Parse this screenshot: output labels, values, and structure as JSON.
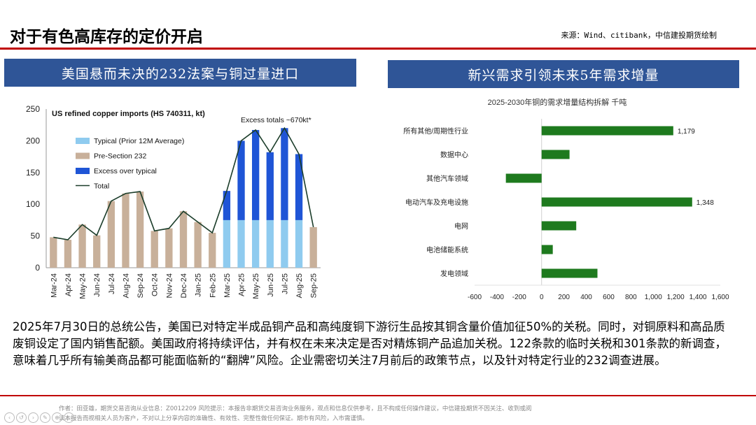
{
  "page": {
    "title": "对于有色高库存的定价开启",
    "source": "来源：Wind、citibank，中信建投期货绘制"
  },
  "left_panel": {
    "header": "美国悬而未决的232法案与铜过量进口"
  },
  "right_panel": {
    "header": "新兴需求引领未来5年需求增量"
  },
  "paragraph": "2025年7月30日的总统公告，美国已对特定半成品铜产品和高纯度铜下游衍生品按其铜含量价值加征50%的关税。同时，对铜原料和高品质废铜设定了国内销售配额。美国政府将持续评估，并有权在未来决定是否对精炼铜产品追加关税。122条款的临时关税和301条款的新调查，意味着几乎所有输美商品都可能面临新的“翻牌”风险。企业需密切关注7月前后的政策节点，以及针对特定行业的232调查进展。",
  "footer": {
    "line1": "作者：田亚雄，期货交易咨询从业信息：Z0012209    风险提示：本报告非期货交易咨询业务服务，观点和信息仅供参考，且不构成任何操作建议，中信建投期货不因关注、收到或阅",
    "line2": "读本报告而视相关人员为客户，不对以上分享内容的准确性、有效性、完整性做任何保证。期市有风险，入市需谨慎。"
  },
  "nav_icons": [
    "prev-icon",
    "back-icon",
    "next-icon",
    "edit-icon",
    "zoom-icon",
    "more-icon"
  ],
  "chart_data": [
    {
      "type": "bar",
      "title": "US refined copper imports (HS 740311, kt)",
      "annotation": "Excess totals ~670kt*",
      "categories": [
        "Mar-24",
        "Apr-24",
        "May-24",
        "Jun-24",
        "Jul-24",
        "Aug-24",
        "Sep-24",
        "Oct-24",
        "Nov-24",
        "Dec-24",
        "Jan-25",
        "Feb-25",
        "Mar-25",
        "Apr-25",
        "May-25",
        "Jun-25",
        "Jul-25",
        "Aug-25",
        "Sep-25"
      ],
      "ylim": [
        0,
        250
      ],
      "yticks": [
        0,
        50,
        100,
        150,
        200,
        250
      ],
      "legend_position": "left",
      "stacked": true,
      "series": [
        {
          "name": "Typical (Prior 12M Average)",
          "color": "#8fcbef",
          "values": [
            null,
            null,
            null,
            null,
            null,
            null,
            null,
            null,
            null,
            null,
            null,
            null,
            75,
            75,
            75,
            75,
            75,
            75,
            null
          ]
        },
        {
          "name": "Pre-Section 232",
          "color": "#c8b09a",
          "values": [
            48,
            44,
            68,
            51,
            105,
            117,
            120,
            58,
            62,
            89,
            72,
            55,
            null,
            null,
            null,
            null,
            null,
            null,
            64
          ]
        },
        {
          "name": "Excess over typical",
          "color": "#1f55d6",
          "values": [
            null,
            null,
            null,
            null,
            null,
            null,
            null,
            null,
            null,
            null,
            null,
            null,
            46,
            125,
            142,
            107,
            145,
            104,
            null
          ]
        },
        {
          "name": "Total",
          "color": "#1b3d2a",
          "line": true,
          "values": [
            48,
            44,
            68,
            51,
            105,
            117,
            120,
            58,
            62,
            89,
            72,
            55,
            121,
            200,
            217,
            182,
            220,
            179,
            64
          ]
        }
      ]
    },
    {
      "type": "bar",
      "orientation": "horizontal",
      "title": "2025-2030年铜的需求增量结构拆解  千吨",
      "categories": [
        "所有其他/周期性行业",
        "数据中心",
        "其他汽车领域",
        "电动汽车及充电设施",
        "电网",
        "电池储能系统",
        "发电领域"
      ],
      "values": [
        1179,
        250,
        -320,
        1348,
        310,
        100,
        500
      ],
      "data_labels": [
        "1,179",
        "",
        "",
        "1,348",
        "",
        "",
        ""
      ],
      "xlim": [
        -600,
        1600
      ],
      "xtick_labels": [
        "-600",
        "-400",
        "-200",
        "0",
        "200",
        "400",
        "600",
        "800",
        "1,000",
        "1,200",
        "1,400",
        "1,600"
      ],
      "color": "#1e7a1e"
    }
  ]
}
